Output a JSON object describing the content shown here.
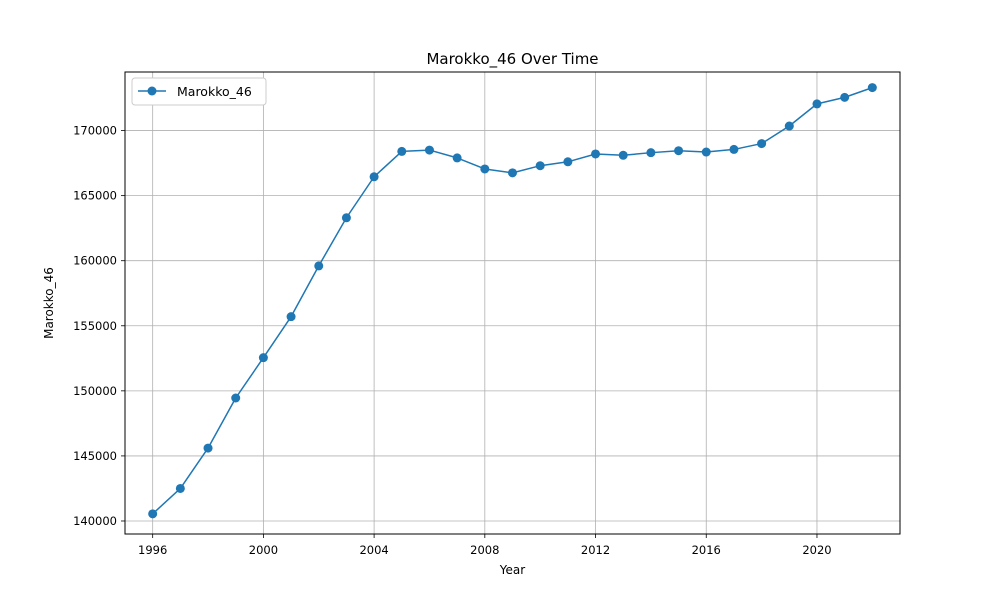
{
  "chart_data": {
    "type": "line",
    "title": "Marokko_46 Over Time",
    "xlabel": "Year",
    "ylabel": "Marokko_46",
    "xlim": [
      1995.0,
      2023.0
    ],
    "ylim": [
      139000,
      174500
    ],
    "x_ticks": [
      1996,
      2000,
      2004,
      2008,
      2012,
      2016,
      2020
    ],
    "y_ticks": [
      140000,
      145000,
      150000,
      155000,
      160000,
      165000,
      170000
    ],
    "grid": true,
    "legend_position": "top-left",
    "series": [
      {
        "name": "Marokko_46",
        "color": "#1f77b4",
        "marker": "circle",
        "x": [
          1996,
          1997,
          1998,
          1999,
          2000,
          2001,
          2002,
          2003,
          2004,
          2005,
          2006,
          2007,
          2008,
          2009,
          2010,
          2011,
          2012,
          2013,
          2014,
          2015,
          2016,
          2017,
          2018,
          2019,
          2020,
          2021,
          2022
        ],
        "y": [
          140550,
          142500,
          145600,
          149450,
          152550,
          155700,
          159600,
          163300,
          166450,
          168400,
          168500,
          167900,
          167050,
          166750,
          167300,
          167600,
          168200,
          168100,
          168300,
          168450,
          168350,
          168550,
          169000,
          170350,
          172050,
          172550,
          173300
        ]
      }
    ]
  }
}
